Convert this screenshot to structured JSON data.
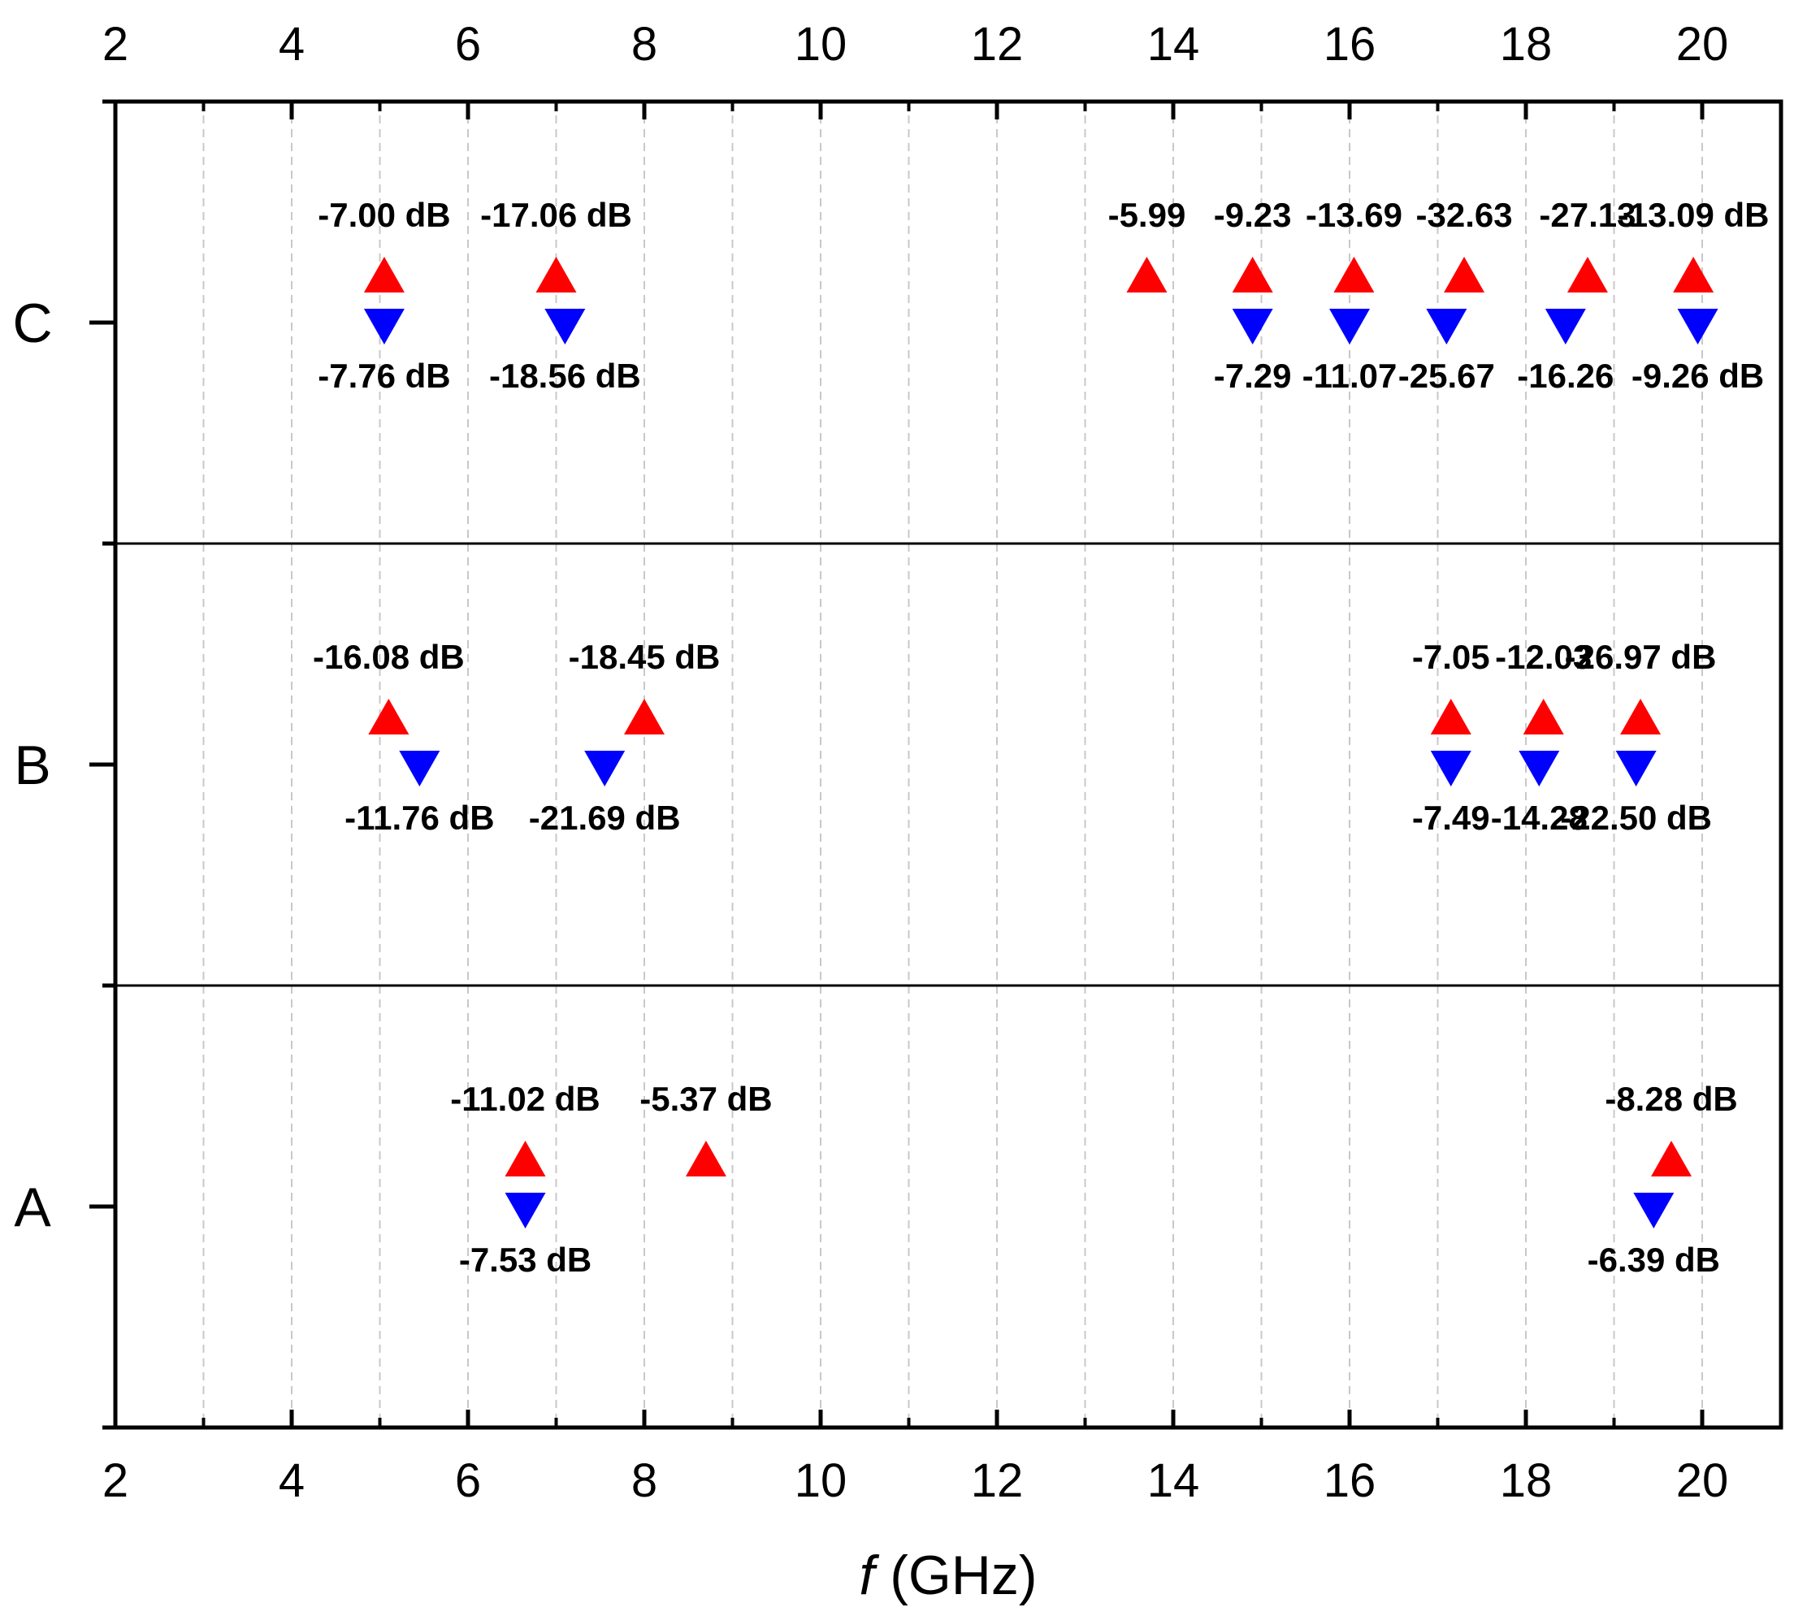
{
  "chart_data": {
    "type": "scatter",
    "title": "",
    "xlabel_italic": "f",
    "xlabel_rest": " (GHz)",
    "xlim": [
      2,
      21
    ],
    "x_ticks": [
      2,
      4,
      6,
      8,
      10,
      12,
      14,
      16,
      18,
      20
    ],
    "x_tick_labels": [
      "2",
      "4",
      "6",
      "8",
      "10",
      "12",
      "14",
      "16",
      "18",
      "20"
    ],
    "x_minor_ticks": [
      3,
      5,
      7,
      9,
      11,
      13,
      15,
      17,
      19
    ],
    "grid": true,
    "categories": [
      "A",
      "B",
      "C"
    ],
    "colors": {
      "up": "#ff0000",
      "down": "#0000ff"
    },
    "series": [
      {
        "name": "up",
        "marker": "triangle-up",
        "points": [
          {
            "category": "C",
            "x": 5.05,
            "label": "-7.00 dB"
          },
          {
            "category": "C",
            "x": 7.0,
            "label": "-17.06 dB"
          },
          {
            "category": "C",
            "x": 13.7,
            "label": "-5.99"
          },
          {
            "category": "C",
            "x": 14.9,
            "label": "-9.23"
          },
          {
            "category": "C",
            "x": 16.05,
            "label": "-13.69"
          },
          {
            "category": "C",
            "x": 17.3,
            "label": "-32.63"
          },
          {
            "category": "C",
            "x": 18.7,
            "label": "-27.13"
          },
          {
            "category": "C",
            "x": 19.9,
            "label": "-13.09 dB"
          },
          {
            "category": "B",
            "x": 5.1,
            "label": "-16.08 dB"
          },
          {
            "category": "B",
            "x": 8.0,
            "label": "-18.45 dB"
          },
          {
            "category": "B",
            "x": 17.15,
            "label": "-7.05"
          },
          {
            "category": "B",
            "x": 18.2,
            "label": "-12.03"
          },
          {
            "category": "B",
            "x": 19.3,
            "label": "-26.97 dB"
          },
          {
            "category": "A",
            "x": 6.65,
            "label": "-11.02 dB"
          },
          {
            "category": "A",
            "x": 8.7,
            "label": "-5.37 dB"
          },
          {
            "category": "A",
            "x": 19.65,
            "label": "-8.28 dB"
          }
        ]
      },
      {
        "name": "down",
        "marker": "triangle-down",
        "points": [
          {
            "category": "C",
            "x": 5.05,
            "label": "-7.76 dB"
          },
          {
            "category": "C",
            "x": 7.1,
            "label": "-18.56 dB"
          },
          {
            "category": "C",
            "x": 14.9,
            "label": "-7.29"
          },
          {
            "category": "C",
            "x": 16.0,
            "label": "-11.07"
          },
          {
            "category": "C",
            "x": 17.1,
            "label": "-25.67"
          },
          {
            "category": "C",
            "x": 18.45,
            "label": "-16.26"
          },
          {
            "category": "C",
            "x": 19.95,
            "label": "-9.26 dB"
          },
          {
            "category": "B",
            "x": 5.45,
            "label": "-11.76 dB"
          },
          {
            "category": "B",
            "x": 7.55,
            "label": "-21.69 dB"
          },
          {
            "category": "B",
            "x": 17.15,
            "label": "-7.49"
          },
          {
            "category": "B",
            "x": 18.15,
            "label": "-14.28"
          },
          {
            "category": "B",
            "x": 19.25,
            "label": "-22.50 dB"
          },
          {
            "category": "A",
            "x": 6.65,
            "label": "-7.53 dB"
          },
          {
            "category": "A",
            "x": 19.45,
            "label": "-6.39 dB"
          }
        ]
      }
    ]
  }
}
